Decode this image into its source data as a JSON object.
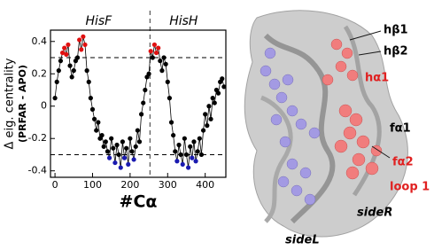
{
  "chart_data": {
    "type": "scatter-line",
    "xlabel": "#Cα",
    "ylabel": [
      "Δ eig. centrality",
      "(PRFAR - APO)"
    ],
    "region_labels": [
      "HisF",
      "HisH"
    ],
    "x": [
      0,
      5,
      10,
      15,
      20,
      25,
      30,
      35,
      40,
      45,
      50,
      55,
      60,
      65,
      70,
      75,
      80,
      85,
      90,
      95,
      100,
      105,
      110,
      115,
      120,
      125,
      130,
      135,
      140,
      145,
      150,
      155,
      160,
      165,
      170,
      175,
      180,
      185,
      190,
      195,
      200,
      205,
      210,
      215,
      220,
      225,
      230,
      235,
      240,
      245,
      250,
      255,
      260,
      265,
      270,
      275,
      280,
      285,
      290,
      295,
      300,
      305,
      310,
      315,
      320,
      325,
      330,
      335,
      340,
      345,
      350,
      355,
      360,
      365,
      370,
      375,
      380,
      385,
      390,
      395,
      400,
      405,
      410,
      415,
      420,
      425,
      430,
      435,
      440,
      445,
      450
    ],
    "values": [
      0.05,
      0.15,
      0.22,
      0.28,
      0.33,
      0.36,
      0.32,
      0.38,
      0.25,
      0.18,
      0.22,
      0.28,
      0.3,
      0.41,
      0.35,
      0.43,
      0.38,
      0.22,
      0.15,
      0.05,
      -0.02,
      -0.08,
      -0.15,
      -0.1,
      -0.2,
      -0.18,
      -0.25,
      -0.22,
      -0.28,
      -0.32,
      -0.2,
      -0.26,
      -0.35,
      -0.24,
      -0.3,
      -0.38,
      -0.22,
      -0.32,
      -0.26,
      -0.36,
      -0.2,
      -0.28,
      -0.33,
      -0.25,
      -0.15,
      -0.22,
      -0.05,
      0.02,
      0.1,
      0.18,
      0.2,
      0.34,
      0.3,
      0.38,
      0.33,
      0.36,
      0.28,
      0.22,
      0.3,
      0.26,
      0.15,
      0.05,
      -0.1,
      -0.18,
      -0.28,
      -0.34,
      -0.24,
      -0.3,
      -0.36,
      -0.2,
      -0.3,
      -0.38,
      -0.25,
      -0.32,
      -0.22,
      -0.34,
      -0.28,
      -0.2,
      -0.3,
      -0.15,
      -0.05,
      -0.12,
      0.0,
      -0.08,
      0.05,
      0.02,
      0.1,
      0.08,
      0.15,
      0.17,
      0.12
    ],
    "color": "#000000",
    "high_color": "#e01010",
    "low_color": "#1a1ab0",
    "hlines": [
      0.3,
      -0.3
    ],
    "vline": 253,
    "xlim": [
      -12,
      455
    ],
    "ylim": [
      -0.44,
      0.47
    ],
    "xticks": [
      0,
      100,
      200,
      300,
      400
    ],
    "yticks": [
      -0.4,
      -0.2,
      0,
      0.2,
      0.4
    ]
  },
  "structure_labels": [
    {
      "text": "hβ1",
      "color": "#000000"
    },
    {
      "text": "hβ2",
      "color": "#000000"
    },
    {
      "text": "hα1",
      "color": "#e02020"
    },
    {
      "text": "fα1",
      "color": "#000000"
    },
    {
      "text": "fα2",
      "color": "#e02020"
    },
    {
      "text": "loop 1",
      "color": "#e02020"
    },
    {
      "text": "sideR",
      "color": "#000000"
    },
    {
      "text": "sideL",
      "color": "#000000"
    }
  ]
}
